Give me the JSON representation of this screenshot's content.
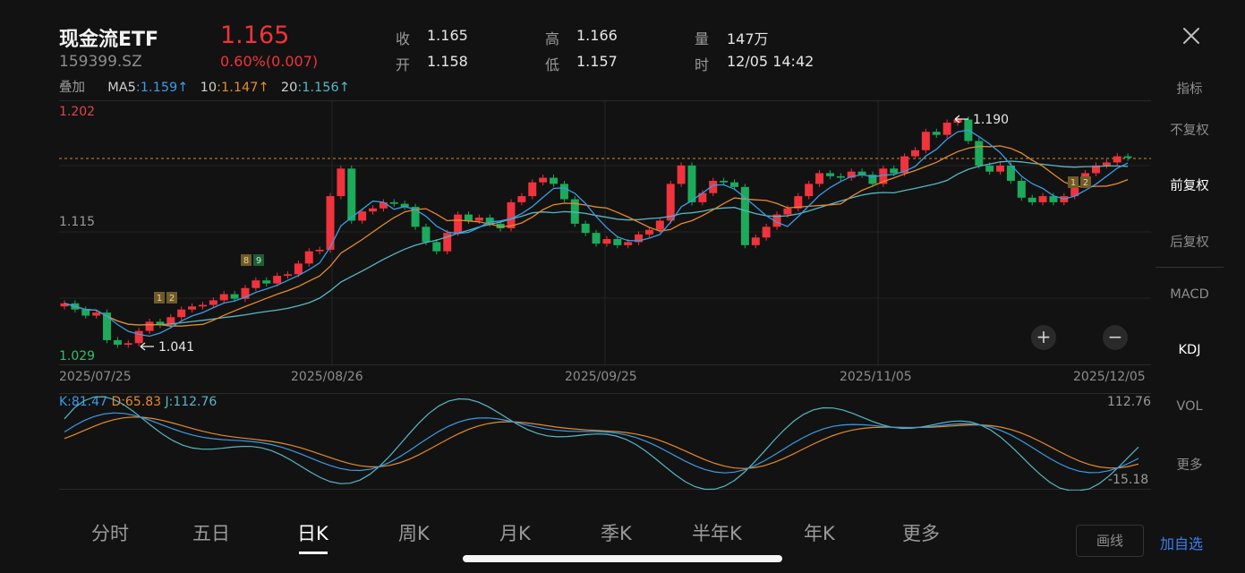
{
  "header": {
    "title": "现金流ETF",
    "code": "159399.SZ",
    "price": "1.165",
    "change": "0.60%(0.007)",
    "quote": [
      {
        "label": "收",
        "value": "1.165"
      },
      {
        "label": "开",
        "value": "1.158"
      },
      {
        "label": "高",
        "value": "1.166"
      },
      {
        "label": "低",
        "value": "1.157"
      },
      {
        "label": "量",
        "value": "147万"
      },
      {
        "label": "时",
        "value": "12/05 14:42"
      }
    ]
  },
  "ma_legend": {
    "overlay": "叠加",
    "ma5_label": "MA5",
    "ma5_value": ":1.159↑",
    "ma10_label": "10",
    "ma10_value": ":1.147↑",
    "ma20_label": "20",
    "ma20_value": ":1.156↑"
  },
  "sidebar": {
    "indicator": "指标",
    "items": [
      "不复权",
      "前复权",
      "后复权",
      "MACD",
      "KDJ",
      "VOL",
      "更多"
    ],
    "active": "前复权",
    "active_indicator": "KDJ"
  },
  "price_axis": {
    "top": "1.202",
    "mid": "1.115",
    "bottom": "1.029",
    "high_marker": "1.190",
    "low_marker": "1.041"
  },
  "dates": [
    "2025/07/25",
    "2025/08/26",
    "2025/09/25",
    "2025/11/05",
    "2025/12/05"
  ],
  "kdj_legend": {
    "k": "K:81.47",
    "d": "D:65.83",
    "j": "J:112.76",
    "top": "112.76",
    "bottom": "-15.18"
  },
  "signals": [
    "1",
    "2",
    "8",
    "9",
    "1",
    "2"
  ],
  "tabs": [
    "分时",
    "五日",
    "日K",
    "周K",
    "月K",
    "季K",
    "半年K",
    "年K",
    "更多"
  ],
  "active_tab": "日K",
  "buttons": {
    "draw": "画线",
    "add": "加自选",
    "zoom_in": "+",
    "zoom_out": "−"
  },
  "colors": {
    "up": "#f0333c",
    "down": "#1bab5b",
    "ma5": "#3b9be6",
    "ma10": "#e48a2e",
    "ma20": "#58b7c4",
    "accent": "#3b7ff2"
  }
}
